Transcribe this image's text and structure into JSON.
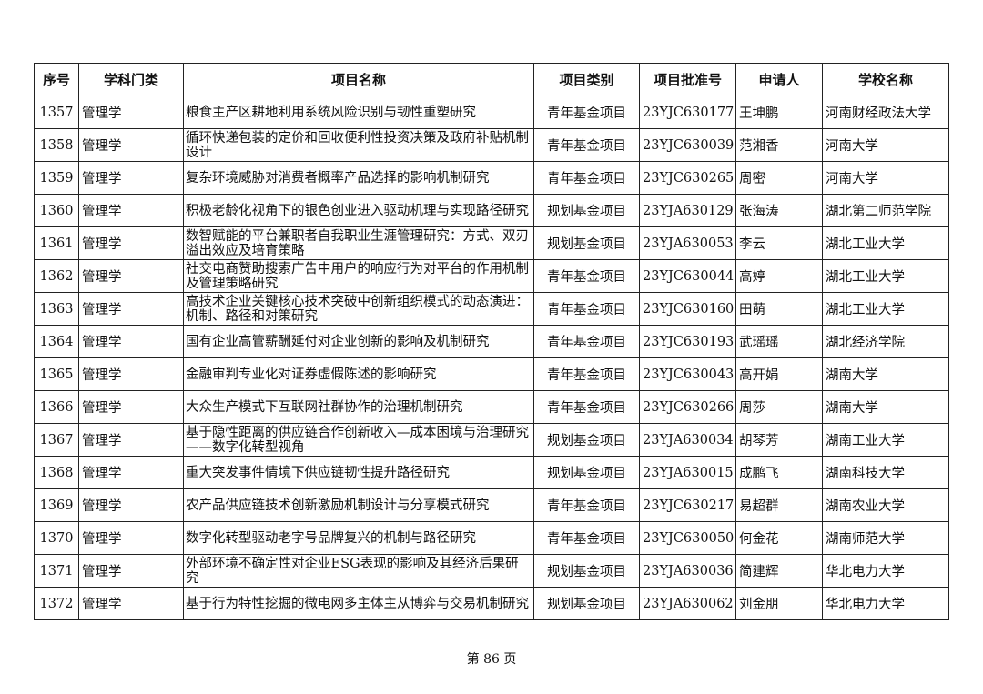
{
  "table": {
    "headers": [
      "序号",
      "学科门类",
      "项目名称",
      "项目类别",
      "项目批准号",
      "申请人",
      "学校名称"
    ],
    "rows": [
      [
        "1357",
        "管理学",
        "粮食主产区耕地利用系统风险识别与韧性重塑研究",
        "青年基金项目",
        "23YJC630177",
        "王坤鹏",
        "河南财经政法大学"
      ],
      [
        "1358",
        "管理学",
        "循环快递包装的定价和回收便利性投资决策及政府补贴机制设计",
        "青年基金项目",
        "23YJC630039",
        "范湘香",
        "河南大学"
      ],
      [
        "1359",
        "管理学",
        "复杂环境威胁对消费者概率产品选择的影响机制研究",
        "青年基金项目",
        "23YJC630265",
        "周密",
        "河南大学"
      ],
      [
        "1360",
        "管理学",
        "积极老龄化视角下的银色创业进入驱动机理与实现路径研究",
        "规划基金项目",
        "23YJA630129",
        "张海涛",
        "湖北第二师范学院"
      ],
      [
        "1361",
        "管理学",
        "数智赋能的平台兼职者自我职业生涯管理研究：方式、双刃溢出效应及培育策略",
        "规划基金项目",
        "23YJA630053",
        "李云",
        "湖北工业大学"
      ],
      [
        "1362",
        "管理学",
        "社交电商赞助搜索广告中用户的响应行为对平台的作用机制及管理策略研究",
        "青年基金项目",
        "23YJC630044",
        "高婷",
        "湖北工业大学"
      ],
      [
        "1363",
        "管理学",
        "高技术企业关键核心技术突破中创新组织模式的动态演进：机制、路径和对策研究",
        "青年基金项目",
        "23YJC630160",
        "田萌",
        "湖北工业大学"
      ],
      [
        "1364",
        "管理学",
        "国有企业高管薪酬延付对企业创新的影响及机制研究",
        "青年基金项目",
        "23YJC630193",
        "武瑶瑶",
        "湖北经济学院"
      ],
      [
        "1365",
        "管理学",
        "金融审判专业化对证券虚假陈述的影响研究",
        "青年基金项目",
        "23YJC630043",
        "高开娟",
        "湖南大学"
      ],
      [
        "1366",
        "管理学",
        "大众生产模式下互联网社群协作的治理机制研究",
        "青年基金项目",
        "23YJC630266",
        "周莎",
        "湖南大学"
      ],
      [
        "1367",
        "管理学",
        "基于隐性距离的供应链合作创新收入—成本困境与治理研究——数字化转型视角",
        "规划基金项目",
        "23YJA630034",
        "胡琴芳",
        "湖南工业大学"
      ],
      [
        "1368",
        "管理学",
        "重大突发事件情境下供应链韧性提升路径研究",
        "规划基金项目",
        "23YJA630015",
        "成鹏飞",
        "湖南科技大学"
      ],
      [
        "1369",
        "管理学",
        "农产品供应链技术创新激励机制设计与分享模式研究",
        "青年基金项目",
        "23YJC630217",
        "易超群",
        "湖南农业大学"
      ],
      [
        "1370",
        "管理学",
        "数字化转型驱动老字号品牌复兴的机制与路径研究",
        "青年基金项目",
        "23YJC630050",
        "何金花",
        "湖南师范大学"
      ],
      [
        "1371",
        "管理学",
        "外部环境不确定性对企业ESG表现的影响及其经济后果研究",
        "规划基金项目",
        "23YJA630036",
        "简建辉",
        "华北电力大学"
      ],
      [
        "1372",
        "管理学",
        "基于行为特性挖掘的微电网多主体主从博弈与交易机制研究",
        "规划基金项目",
        "23YJA630062",
        "刘金朋",
        "华北电力大学"
      ]
    ]
  },
  "footer": {
    "page_label": "第 86 页"
  }
}
